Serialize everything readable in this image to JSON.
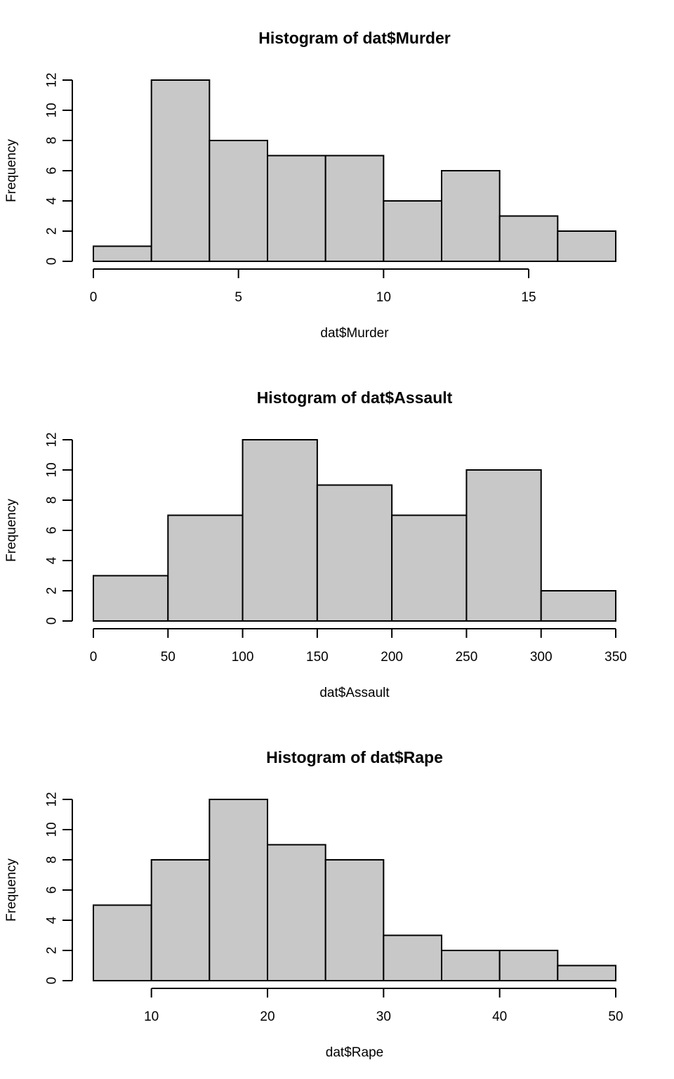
{
  "chart_data": [
    {
      "type": "bar",
      "title": "Histogram of dat$Murder",
      "xlabel": "dat$Murder",
      "ylabel": "Frequency",
      "bin_edges": [
        0,
        2,
        4,
        6,
        8,
        10,
        12,
        14,
        16,
        18
      ],
      "values": [
        1,
        12,
        8,
        7,
        7,
        4,
        6,
        3,
        2
      ],
      "xticks": [
        0,
        5,
        10,
        15
      ],
      "yticks": [
        0,
        2,
        4,
        6,
        8,
        10,
        12
      ],
      "xlim": [
        0,
        18
      ],
      "ylim": [
        0,
        12
      ],
      "grid": false,
      "bar_color": "#c8c8c8"
    },
    {
      "type": "bar",
      "title": "Histogram of dat$Assault",
      "xlabel": "dat$Assault",
      "ylabel": "Frequency",
      "bin_edges": [
        0,
        50,
        100,
        150,
        200,
        250,
        300,
        350
      ],
      "values": [
        3,
        7,
        12,
        9,
        7,
        10,
        2
      ],
      "xticks": [
        0,
        50,
        100,
        150,
        200,
        250,
        300,
        350
      ],
      "yticks": [
        0,
        2,
        4,
        6,
        8,
        10,
        12
      ],
      "xlim": [
        0,
        350
      ],
      "ylim": [
        0,
        12
      ],
      "grid": false,
      "bar_color": "#c8c8c8"
    },
    {
      "type": "bar",
      "title": "Histogram of dat$Rape",
      "xlabel": "dat$Rape",
      "ylabel": "Frequency",
      "bin_edges": [
        5,
        10,
        15,
        20,
        25,
        30,
        35,
        40,
        45,
        50
      ],
      "values": [
        5,
        8,
        12,
        9,
        8,
        3,
        2,
        2,
        1
      ],
      "xticks": [
        10,
        20,
        30,
        40,
        50
      ],
      "yticks": [
        0,
        2,
        4,
        6,
        8,
        10,
        12
      ],
      "xlim": [
        5,
        50
      ],
      "ylim": [
        0,
        12
      ],
      "grid": false,
      "bar_color": "#c8c8c8"
    }
  ]
}
